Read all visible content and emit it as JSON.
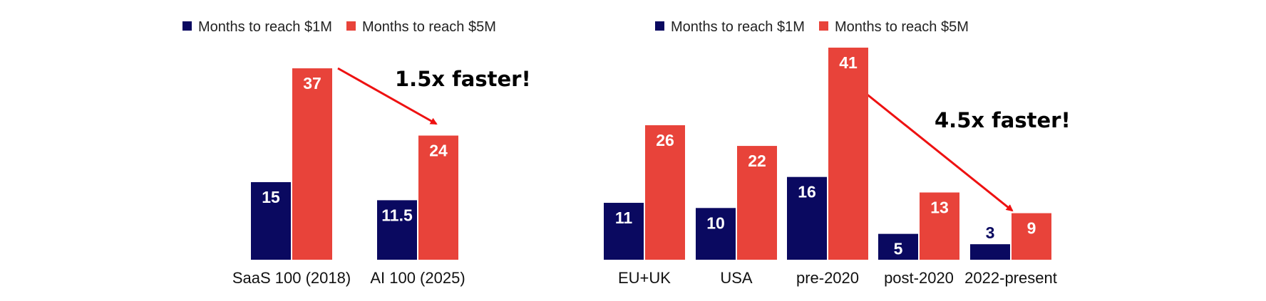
{
  "colors": {
    "series_1m": "#0a0960",
    "series_5m": "#e8433a",
    "arrow": "#ee1111"
  },
  "chart_data": [
    {
      "type": "bar",
      "legend_placement": "top",
      "grid": false,
      "ylim": [
        0,
        45
      ],
      "categories": [
        "SaaS 100 (2018)",
        "AI 100 (2025)"
      ],
      "series": [
        {
          "name": "Months to reach $1M",
          "values": [
            15,
            11.5
          ],
          "labels": [
            "15",
            "11.5"
          ]
        },
        {
          "name": "Months to reach $5M",
          "values": [
            37,
            24
          ],
          "labels": [
            "37",
            "24"
          ]
        }
      ],
      "annotation": "1.5x faster!"
    },
    {
      "type": "bar",
      "legend_placement": "top",
      "grid": false,
      "ylim": [
        0,
        45
      ],
      "categories": [
        "EU+UK",
        "USA",
        "pre-2020",
        "post-2020",
        "2022-present"
      ],
      "series": [
        {
          "name": "Months to reach $1M",
          "values": [
            11,
            10,
            16,
            5,
            3
          ],
          "labels": [
            "11",
            "10",
            "16",
            "5",
            "3"
          ]
        },
        {
          "name": "Months to reach $5M",
          "values": [
            26,
            22,
            41,
            13,
            9
          ],
          "labels": [
            "26",
            "22",
            "41",
            "13",
            "9"
          ]
        }
      ],
      "annotation": "4.5x faster!"
    }
  ]
}
